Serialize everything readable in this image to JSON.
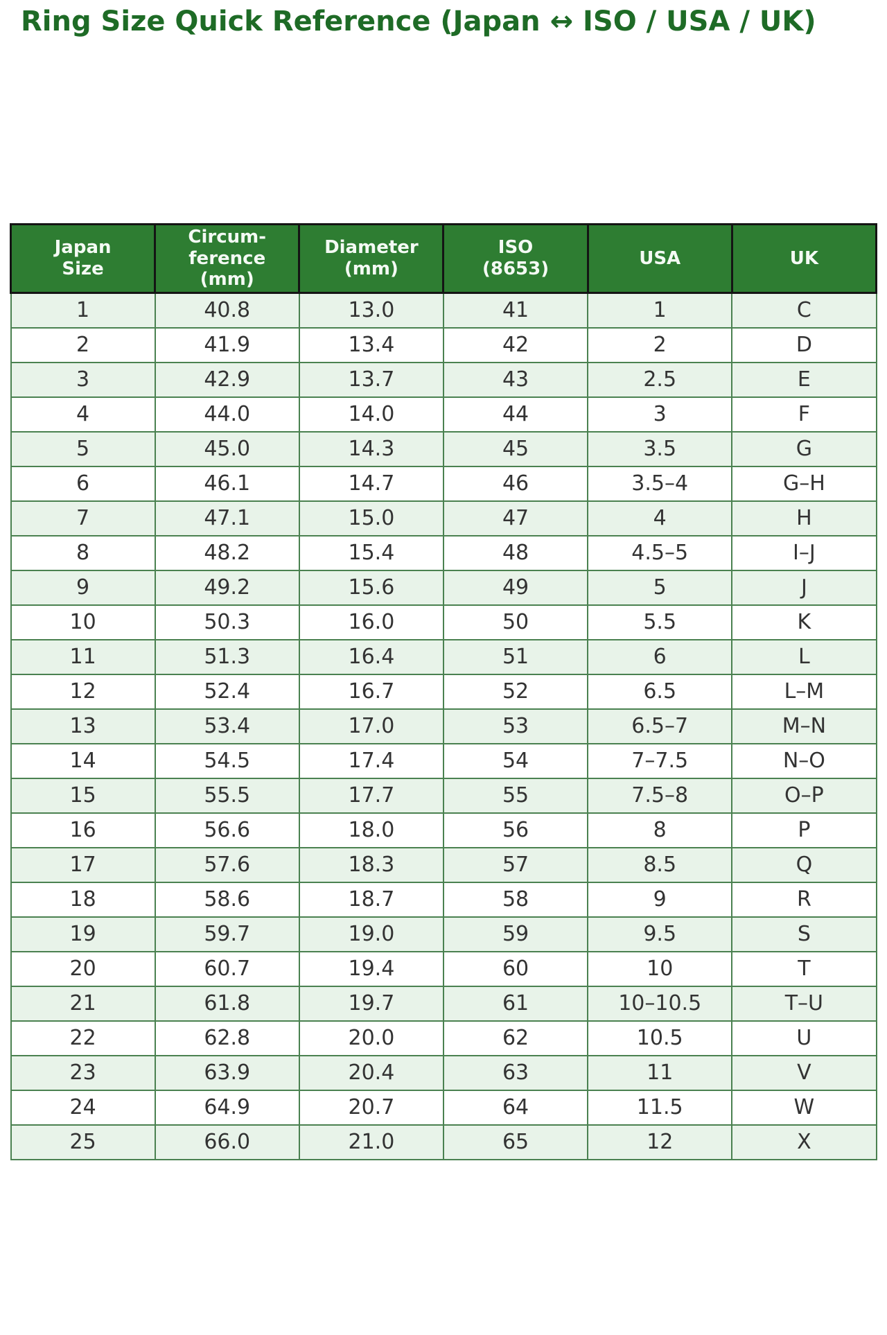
{
  "page": {
    "title": "Ring Size Quick Reference (Japan ↔ ISO / USA / UK)"
  },
  "colors": {
    "title_green": "#1e6b26",
    "header_bg": "#2e7d32",
    "header_text": "#f4faf4",
    "header_border": "#141414",
    "row_alt_bg": "#e8f3e9",
    "row_bg": "#ffffff",
    "body_border": "#4a8150",
    "cell_text": "#333333"
  },
  "chart_data": {
    "type": "table",
    "title": "Ring Size Quick Reference (Japan ↔ ISO / USA / UK)",
    "columns": [
      "Japan Size",
      "Circumference (mm)",
      "Diameter (mm)",
      "ISO (8653)",
      "USA",
      "UK"
    ],
    "columns_display": [
      "Japan\nSize",
      "Circum-\nference\n(mm)",
      "Diameter\n(mm)",
      "ISO\n(8653)",
      "USA",
      "UK"
    ],
    "rows": [
      [
        "1",
        "40.8",
        "13.0",
        "41",
        "1",
        "C"
      ],
      [
        "2",
        "41.9",
        "13.4",
        "42",
        "2",
        "D"
      ],
      [
        "3",
        "42.9",
        "13.7",
        "43",
        "2.5",
        "E"
      ],
      [
        "4",
        "44.0",
        "14.0",
        "44",
        "3",
        "F"
      ],
      [
        "5",
        "45.0",
        "14.3",
        "45",
        "3.5",
        "G"
      ],
      [
        "6",
        "46.1",
        "14.7",
        "46",
        "3.5–4",
        "G–H"
      ],
      [
        "7",
        "47.1",
        "15.0",
        "47",
        "4",
        "H"
      ],
      [
        "8",
        "48.2",
        "15.4",
        "48",
        "4.5–5",
        "I–J"
      ],
      [
        "9",
        "49.2",
        "15.6",
        "49",
        "5",
        "J"
      ],
      [
        "10",
        "50.3",
        "16.0",
        "50",
        "5.5",
        "K"
      ],
      [
        "11",
        "51.3",
        "16.4",
        "51",
        "6",
        "L"
      ],
      [
        "12",
        "52.4",
        "16.7",
        "52",
        "6.5",
        "L–M"
      ],
      [
        "13",
        "53.4",
        "17.0",
        "53",
        "6.5–7",
        "M–N"
      ],
      [
        "14",
        "54.5",
        "17.4",
        "54",
        "7–7.5",
        "N–O"
      ],
      [
        "15",
        "55.5",
        "17.7",
        "55",
        "7.5–8",
        "O–P"
      ],
      [
        "16",
        "56.6",
        "18.0",
        "56",
        "8",
        "P"
      ],
      [
        "17",
        "57.6",
        "18.3",
        "57",
        "8.5",
        "Q"
      ],
      [
        "18",
        "58.6",
        "18.7",
        "58",
        "9",
        "R"
      ],
      [
        "19",
        "59.7",
        "19.0",
        "59",
        "9.5",
        "S"
      ],
      [
        "20",
        "60.7",
        "19.4",
        "60",
        "10",
        "T"
      ],
      [
        "21",
        "61.8",
        "19.7",
        "61",
        "10–10.5",
        "T–U"
      ],
      [
        "22",
        "62.8",
        "20.0",
        "62",
        "10.5",
        "U"
      ],
      [
        "23",
        "63.9",
        "20.4",
        "63",
        "11",
        "V"
      ],
      [
        "24",
        "64.9",
        "20.7",
        "64",
        "11.5",
        "W"
      ],
      [
        "25",
        "66.0",
        "21.0",
        "65",
        "12",
        "X"
      ]
    ]
  }
}
